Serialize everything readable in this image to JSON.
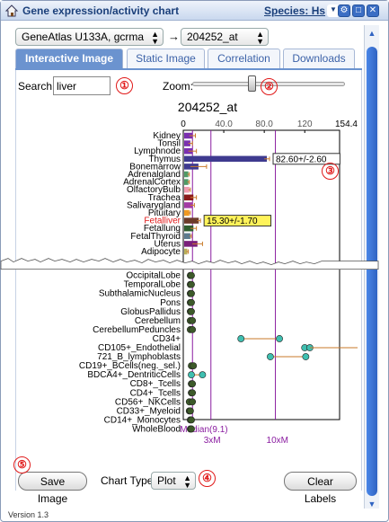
{
  "window": {
    "title": "Gene expression/activity chart",
    "species_link": "Species: Hs",
    "version": "Version 1.3"
  },
  "dataset_select": "GeneAtlas U133A, gcrma",
  "arrow_glyph": "→",
  "probe_select": "204252_at",
  "tabs": [
    {
      "label": "Interactive Image",
      "active": true
    },
    {
      "label": "Static Image",
      "active": false
    },
    {
      "label": "Correlation",
      "active": false
    },
    {
      "label": "Downloads",
      "active": false
    }
  ],
  "search": {
    "label": "Search:",
    "value": "liver"
  },
  "zoom": {
    "label": "Zoom:",
    "level_fraction": 0.38
  },
  "callouts": {
    "c1": "①",
    "c2": "②",
    "c3": "③",
    "c4": "④",
    "c5": "⑤"
  },
  "chart_data": {
    "type": "bar",
    "title": "204252_at",
    "axis_ticks": [
      "0",
      "40.0",
      "80.0",
      "120",
      "154.4"
    ],
    "xlim": [
      0,
      154.4
    ],
    "top_categories": [
      {
        "label": "Kidney",
        "value": 9,
        "err": 3,
        "color": "#7a2fb0"
      },
      {
        "label": "Tonsil",
        "value": 7,
        "err": 2,
        "color": "#7a2fb0"
      },
      {
        "label": "Lymphnode",
        "value": 9,
        "err": 4,
        "color": "#7a2fb0"
      },
      {
        "label": "Thymus",
        "value": 82.6,
        "err": 2.6,
        "color": "#3e3a8f"
      },
      {
        "label": "Bonemarrow",
        "value": 15,
        "err": 8,
        "color": "#3e3a8f"
      },
      {
        "label": "Adrenalgland",
        "value": 5,
        "err": 1,
        "color": "#4f9b66"
      },
      {
        "label": "AdrenalCortex",
        "value": 5,
        "err": 1,
        "color": "#4f9b66"
      },
      {
        "label": "OlfactoryBulb",
        "value": 6,
        "err": 1,
        "color": "#f19bb0"
      },
      {
        "label": "Trachea",
        "value": 10,
        "err": 3,
        "color": "#8b1a1a"
      },
      {
        "label": "Salivarygland",
        "value": 9,
        "err": 2,
        "color": "#a33aa3"
      },
      {
        "label": "Pituitary",
        "value": 6,
        "err": 1,
        "color": "#f09a22"
      },
      {
        "label": "Fetalliver",
        "value": 15.3,
        "err": 1.7,
        "color": "#6b3b2a",
        "highlight": true
      },
      {
        "label": "Fetallung",
        "value": 10,
        "err": 3,
        "color": "#2f5e2f"
      },
      {
        "label": "FetalThyroid",
        "value": 7,
        "err": 1,
        "color": "#5c7a8e"
      },
      {
        "label": "Uterus",
        "value": 14,
        "err": 5,
        "color": "#7a1f7a"
      },
      {
        "label": "Adipocyte",
        "value": 4,
        "err": 1,
        "color": "#b9b05a"
      }
    ],
    "value_labels": [
      {
        "category": "Thymus",
        "text": "82.60+/-2.60",
        "style": "dark"
      },
      {
        "category": "Fetalliver",
        "text": "15.30+/-1.70",
        "style": "yellow"
      }
    ],
    "bottom_categories": [
      {
        "label": "OccipitalLobe",
        "points": [
          7,
          8
        ]
      },
      {
        "label": "TemporalLobe",
        "points": [
          7,
          8
        ]
      },
      {
        "label": "SubthalamicNucleus",
        "points": [
          7,
          8
        ]
      },
      {
        "label": "Pons",
        "points": [
          7,
          8
        ]
      },
      {
        "label": "GlobusPallidus",
        "points": [
          7,
          8
        ]
      },
      {
        "label": "Cerebellum",
        "points": [
          7,
          9
        ]
      },
      {
        "label": "CerebellumPeduncles",
        "points": [
          7,
          9
        ]
      },
      {
        "label": "CD34+",
        "points": [
          57,
          95
        ]
      },
      {
        "label": "CD105+_Endothelial",
        "points": [
          120,
          125
        ]
      },
      {
        "label": "721_B_lymphoblasts",
        "points": [
          86,
          121
        ]
      },
      {
        "label": "CD19+_BCells(neg._sel.)",
        "points": [
          8,
          10
        ]
      },
      {
        "label": "BDCA4+_DentriticCells",
        "points": [
          8,
          19
        ]
      },
      {
        "label": "CD8+_Tcells",
        "points": [
          8,
          9
        ]
      },
      {
        "label": "CD4+_Tcells",
        "points": [
          8,
          9
        ]
      },
      {
        "label": "CD56+_NKCells",
        "points": [
          6,
          9
        ]
      },
      {
        "label": "CD33+_Myeloid",
        "points": [
          6,
          7
        ]
      },
      {
        "label": "CD14+_Monocytes",
        "points": [
          7,
          8
        ]
      },
      {
        "label": "WholeBlood",
        "points": [
          7,
          8
        ]
      }
    ],
    "reference_lines": [
      {
        "label": "Median(9.1)",
        "value": 9.1
      },
      {
        "label": "3xM",
        "value": 27.3
      },
      {
        "label": "10xM",
        "value": 91
      }
    ]
  },
  "chart_type": {
    "label": "Chart Type:",
    "value": "Plot"
  },
  "buttons": {
    "save": "Save Image",
    "clear": "Clear Labels"
  },
  "colors": {
    "accent": "#3c62a8",
    "tab_active": "#6b93cf",
    "callout": "#e01818",
    "ref_line": "#8a1ca0"
  }
}
